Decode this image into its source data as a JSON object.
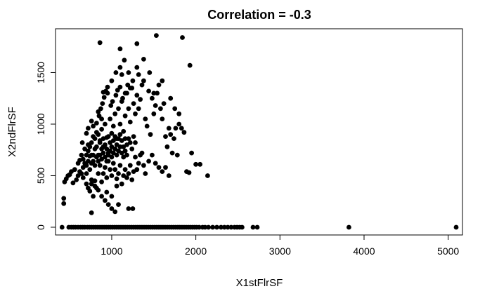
{
  "chart_data": {
    "type": "scatter",
    "title": "Correlation =  -0.3",
    "xlabel": "X1stFlrSF",
    "ylabel": "X2ndFlrSF",
    "xlim": [
      332,
      5170
    ],
    "ylim": [
      -75,
      1925
    ],
    "xticks": [
      1000,
      2000,
      3000,
      4000,
      5000
    ],
    "yticks": [
      0,
      500,
      1000,
      1500
    ],
    "grid": false,
    "marker_color": "#000000",
    "points": [
      [
        410,
        0
      ],
      [
        490,
        0
      ],
      [
        520,
        0
      ],
      [
        545,
        0
      ],
      [
        570,
        0
      ],
      [
        600,
        0
      ],
      [
        630,
        0
      ],
      [
        655,
        0
      ],
      [
        680,
        0
      ],
      [
        710,
        0
      ],
      [
        735,
        0
      ],
      [
        760,
        0
      ],
      [
        785,
        0
      ],
      [
        810,
        0
      ],
      [
        835,
        0
      ],
      [
        860,
        0
      ],
      [
        885,
        0
      ],
      [
        910,
        0
      ],
      [
        935,
        0
      ],
      [
        960,
        0
      ],
      [
        985,
        0
      ],
      [
        1010,
        0
      ],
      [
        1035,
        0
      ],
      [
        1060,
        0
      ],
      [
        1085,
        0
      ],
      [
        1110,
        0
      ],
      [
        1135,
        0
      ],
      [
        1160,
        0
      ],
      [
        1185,
        0
      ],
      [
        1210,
        0
      ],
      [
        1235,
        0
      ],
      [
        1260,
        0
      ],
      [
        1285,
        0
      ],
      [
        1310,
        0
      ],
      [
        1335,
        0
      ],
      [
        1360,
        0
      ],
      [
        1385,
        0
      ],
      [
        1410,
        0
      ],
      [
        1435,
        0
      ],
      [
        1460,
        0
      ],
      [
        1485,
        0
      ],
      [
        1510,
        0
      ],
      [
        1535,
        0
      ],
      [
        1560,
        0
      ],
      [
        1585,
        0
      ],
      [
        1610,
        0
      ],
      [
        1635,
        0
      ],
      [
        1660,
        0
      ],
      [
        1685,
        0
      ],
      [
        1710,
        0
      ],
      [
        1735,
        0
      ],
      [
        1760,
        0
      ],
      [
        1785,
        0
      ],
      [
        1810,
        0
      ],
      [
        1835,
        0
      ],
      [
        1860,
        0
      ],
      [
        1885,
        0
      ],
      [
        1910,
        0
      ],
      [
        1935,
        0
      ],
      [
        1960,
        0
      ],
      [
        1985,
        0
      ],
      [
        2010,
        0
      ],
      [
        2040,
        0
      ],
      [
        2080,
        0
      ],
      [
        2110,
        0
      ],
      [
        2150,
        0
      ],
      [
        2200,
        0
      ],
      [
        2250,
        0
      ],
      [
        2300,
        0
      ],
      [
        2340,
        0
      ],
      [
        2380,
        0
      ],
      [
        2420,
        0
      ],
      [
        2460,
        0
      ],
      [
        2490,
        0
      ],
      [
        2520,
        0
      ],
      [
        2550,
        0
      ],
      [
        2680,
        0
      ],
      [
        2730,
        0
      ],
      [
        3820,
        0
      ],
      [
        5095,
        0
      ],
      [
        430,
        230
      ],
      [
        430,
        280
      ],
      [
        440,
        440
      ],
      [
        460,
        470
      ],
      [
        480,
        500
      ],
      [
        500,
        510
      ],
      [
        520,
        540
      ],
      [
        540,
        430
      ],
      [
        560,
        560
      ],
      [
        580,
        460
      ],
      [
        600,
        620
      ],
      [
        620,
        650
      ],
      [
        640,
        700
      ],
      [
        660,
        580
      ],
      [
        680,
        760
      ],
      [
        700,
        520
      ],
      [
        720,
        800
      ],
      [
        740,
        690
      ],
      [
        760,
        620
      ],
      [
        780,
        880
      ],
      [
        800,
        760
      ],
      [
        820,
        920
      ],
      [
        840,
        700
      ],
      [
        860,
        840
      ],
      [
        880,
        950
      ],
      [
        900,
        780
      ],
      [
        920,
        1000
      ],
      [
        940,
        870
      ],
      [
        960,
        720
      ],
      [
        980,
        1050
      ],
      [
        1000,
        910
      ],
      [
        1020,
        980
      ],
      [
        1040,
        1100
      ],
      [
        1060,
        860
      ],
      [
        1080,
        1150
      ],
      [
        1100,
        1000
      ],
      [
        1120,
        1220
      ],
      [
        1140,
        930
      ],
      [
        1160,
        1080
      ],
      [
        1180,
        1300
      ],
      [
        1200,
        1150
      ],
      [
        1220,
        1020
      ],
      [
        1240,
        1350
      ],
      [
        1260,
        1200
      ],
      [
        1280,
        1100
      ],
      [
        1300,
        1280
      ],
      [
        1320,
        1150
      ],
      [
        1340,
        1240
      ],
      [
        1360,
        1380
      ],
      [
        1380,
        1420
      ],
      [
        1400,
        1050
      ],
      [
        1420,
        980
      ],
      [
        1440,
        1320
      ],
      [
        1460,
        900
      ],
      [
        1480,
        1250
      ],
      [
        1500,
        1100
      ],
      [
        1520,
        1180
      ],
      [
        1540,
        1300
      ],
      [
        1560,
        1380
      ],
      [
        1580,
        1150
      ],
      [
        1600,
        1050
      ],
      [
        1620,
        1200
      ],
      [
        1640,
        880
      ],
      [
        1660,
        780
      ],
      [
        1680,
        960
      ],
      [
        1700,
        900
      ],
      [
        1720,
        720
      ],
      [
        1740,
        860
      ],
      [
        1760,
        960
      ],
      [
        1780,
        700
      ],
      [
        1800,
        1000
      ],
      [
        1830,
        960
      ],
      [
        1860,
        920
      ],
      [
        1890,
        540
      ],
      [
        1920,
        530
      ],
      [
        1950,
        720
      ],
      [
        2000,
        610
      ],
      [
        2050,
        610
      ],
      [
        2140,
        500
      ],
      [
        650,
        820
      ],
      [
        700,
        910
      ],
      [
        720,
        960
      ],
      [
        760,
        1030
      ],
      [
        780,
        980
      ],
      [
        820,
        1010
      ],
      [
        850,
        1080
      ],
      [
        870,
        1150
      ],
      [
        890,
        1200
      ],
      [
        910,
        1260
      ],
      [
        930,
        1320
      ],
      [
        950,
        1360
      ],
      [
        990,
        1180
      ],
      [
        1010,
        1220
      ],
      [
        1050,
        1280
      ],
      [
        1070,
        1330
      ],
      [
        1100,
        1360
      ],
      [
        1130,
        1250
      ],
      [
        1160,
        1300
      ],
      [
        1190,
        1380
      ],
      [
        1220,
        1350
      ],
      [
        640,
        520
      ],
      [
        660,
        480
      ],
      [
        700,
        420
      ],
      [
        720,
        380
      ],
      [
        740,
        350
      ],
      [
        760,
        420
      ],
      [
        780,
        300
      ],
      [
        800,
        450
      ],
      [
        820,
        380
      ],
      [
        840,
        520
      ],
      [
        860,
        600
      ],
      [
        880,
        440
      ],
      [
        900,
        520
      ],
      [
        920,
        580
      ],
      [
        940,
        480
      ],
      [
        960,
        640
      ],
      [
        980,
        560
      ],
      [
        1000,
        500
      ],
      [
        1020,
        620
      ],
      [
        1040,
        560
      ],
      [
        1060,
        470
      ],
      [
        1080,
        520
      ],
      [
        1100,
        600
      ],
      [
        1120,
        420
      ],
      [
        1140,
        500
      ],
      [
        1160,
        560
      ],
      [
        1180,
        480
      ],
      [
        1200,
        520
      ],
      [
        1220,
        600
      ],
      [
        1240,
        460
      ],
      [
        1260,
        540
      ],
      [
        1280,
        680
      ],
      [
        1300,
        560
      ],
      [
        1320,
        620
      ],
      [
        1340,
        700
      ],
      [
        1360,
        720
      ],
      [
        1380,
        600
      ],
      [
        1400,
        520
      ],
      [
        1440,
        640
      ],
      [
        1480,
        700
      ],
      [
        1520,
        620
      ],
      [
        1560,
        580
      ],
      [
        1600,
        540
      ],
      [
        1640,
        580
      ],
      [
        1680,
        500
      ],
      [
        600,
        500
      ],
      [
        620,
        540
      ],
      [
        660,
        660
      ],
      [
        680,
        620
      ],
      [
        700,
        700
      ],
      [
        720,
        740
      ],
      [
        740,
        780
      ],
      [
        760,
        820
      ],
      [
        780,
        700
      ],
      [
        800,
        860
      ],
      [
        820,
        780
      ],
      [
        840,
        900
      ],
      [
        860,
        820
      ],
      [
        880,
        760
      ],
      [
        900,
        860
      ],
      [
        920,
        800
      ],
      [
        940,
        760
      ],
      [
        960,
        880
      ],
      [
        980,
        820
      ],
      [
        1000,
        780
      ],
      [
        1020,
        840
      ],
      [
        1040,
        880
      ],
      [
        1060,
        800
      ],
      [
        1080,
        860
      ],
      [
        1100,
        900
      ],
      [
        1120,
        840
      ],
      [
        1140,
        780
      ],
      [
        1160,
        860
      ],
      [
        1180,
        800
      ],
      [
        1200,
        860
      ],
      [
        1220,
        820
      ],
      [
        1240,
        760
      ],
      [
        1260,
        880
      ],
      [
        1280,
        820
      ],
      [
        700,
        600
      ],
      [
        720,
        640
      ],
      [
        740,
        560
      ],
      [
        760,
        700
      ],
      [
        780,
        640
      ],
      [
        800,
        600
      ],
      [
        820,
        680
      ],
      [
        840,
        640
      ],
      [
        860,
        700
      ],
      [
        880,
        660
      ],
      [
        900,
        720
      ],
      [
        920,
        680
      ],
      [
        940,
        640
      ],
      [
        960,
        700
      ],
      [
        980,
        740
      ],
      [
        1000,
        680
      ],
      [
        1020,
        720
      ],
      [
        1040,
        760
      ],
      [
        1060,
        700
      ],
      [
        1080,
        740
      ],
      [
        1100,
        780
      ],
      [
        1120,
        720
      ],
      [
        1140,
        680
      ],
      [
        1160,
        740
      ],
      [
        1180,
        700
      ],
      [
        760,
        460
      ],
      [
        800,
        400
      ],
      [
        840,
        360
      ],
      [
        880,
        300
      ],
      [
        920,
        260
      ],
      [
        960,
        220
      ],
      [
        1000,
        180
      ],
      [
        1040,
        150
      ],
      [
        1080,
        220
      ],
      [
        1200,
        180
      ],
      [
        1250,
        180
      ],
      [
        760,
        140
      ],
      [
        940,
        340
      ],
      [
        1000,
        300
      ],
      [
        1060,
        400
      ],
      [
        860,
        1790
      ],
      [
        1100,
        1730
      ],
      [
        1150,
        1620
      ],
      [
        1300,
        1780
      ],
      [
        1380,
        1630
      ],
      [
        1530,
        1860
      ],
      [
        1840,
        1840
      ],
      [
        1930,
        1570
      ],
      [
        1050,
        1500
      ],
      [
        1120,
        1480
      ],
      [
        1000,
        1420
      ],
      [
        900,
        1310
      ],
      [
        950,
        1300
      ],
      [
        840,
        1120
      ],
      [
        880,
        1050
      ],
      [
        1100,
        1550
      ],
      [
        1200,
        1500
      ],
      [
        1300,
        1550
      ],
      [
        1250,
        1420
      ],
      [
        1320,
        1480
      ],
      [
        1450,
        1500
      ],
      [
        1500,
        1300
      ],
      [
        1600,
        1420
      ],
      [
        1700,
        1250
      ],
      [
        1750,
        1150
      ],
      [
        1800,
        1100
      ]
    ]
  }
}
